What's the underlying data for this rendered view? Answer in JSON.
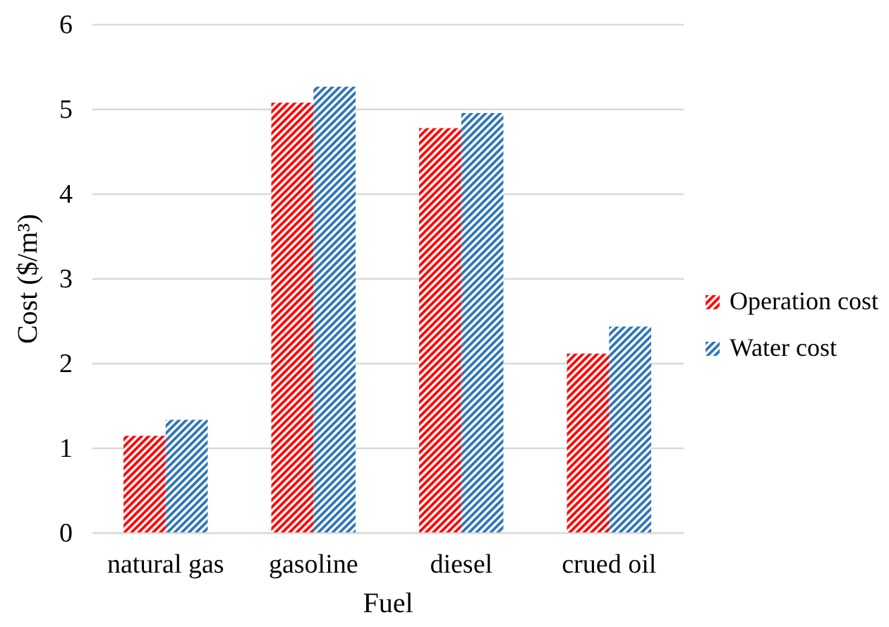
{
  "chart_data": {
    "type": "bar",
    "xlabel": "Fuel",
    "ylabel": "Cost ($/m³)",
    "categories": [
      "natural gas",
      "gasoline",
      "diesel",
      "crued oil"
    ],
    "series": [
      {
        "name": "Operation cost",
        "color": "#ff0000",
        "values": [
          1.14,
          5.07,
          4.77,
          2.11
        ]
      },
      {
        "name": "Water cost",
        "color": "#2e75b6",
        "values": [
          1.33,
          5.26,
          4.95,
          2.43
        ]
      }
    ],
    "ylim": [
      0,
      6
    ],
    "yticks": [
      0,
      1,
      2,
      3,
      4,
      5,
      6
    ],
    "grid": "y",
    "legend": "right"
  }
}
